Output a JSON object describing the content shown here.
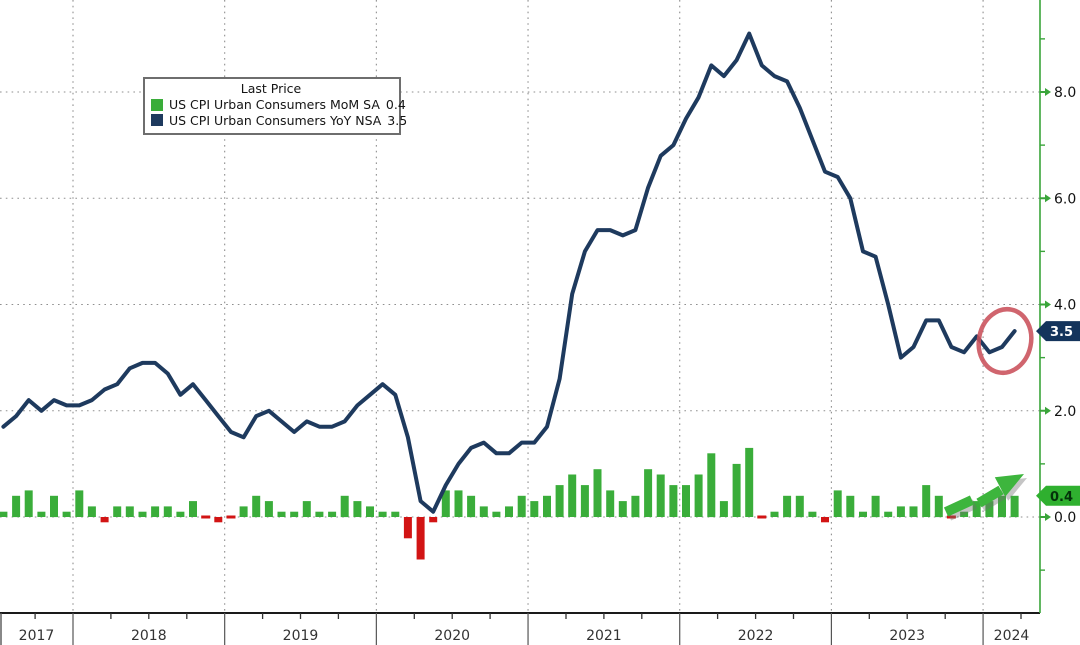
{
  "chart_data": {
    "type": "combo",
    "legend": {
      "title": "Last Price",
      "position": "top-left"
    },
    "x_axis": {
      "start_month": "2017-07",
      "end_month": "2024-03",
      "years": [
        "2017",
        "2018",
        "2019",
        "2020",
        "2021",
        "2022",
        "2023",
        "2024"
      ]
    },
    "y_axis": {
      "side": "right",
      "labels": [
        "0.0",
        "2.0",
        "4.0",
        "6.0",
        "8.0"
      ],
      "values": [
        0,
        2,
        4,
        6,
        8
      ],
      "minor_ticks": [
        -1,
        1,
        3,
        5,
        7,
        9
      ],
      "range": [
        -1.9,
        9.7
      ],
      "grid": "dotted"
    },
    "series": [
      {
        "name": "US CPI Urban Consumers MoM SA",
        "type": "bar",
        "last": "0.4",
        "color": "#3aad3a",
        "negative_color": "#d21414",
        "values": [
          0.1,
          0.4,
          0.5,
          0.1,
          0.4,
          0.1,
          0.5,
          0.2,
          -0.1,
          0.2,
          0.2,
          0.1,
          0.2,
          0.2,
          0.1,
          0.3,
          0.0,
          -0.1,
          0.0,
          0.2,
          0.4,
          0.3,
          0.1,
          0.1,
          0.3,
          0.1,
          0.1,
          0.4,
          0.3,
          0.2,
          0.1,
          0.1,
          -0.4,
          -0.8,
          -0.1,
          0.5,
          0.5,
          0.4,
          0.2,
          0.1,
          0.2,
          0.4,
          0.3,
          0.4,
          0.6,
          0.8,
          0.6,
          0.9,
          0.5,
          0.3,
          0.4,
          0.9,
          0.8,
          0.6,
          0.6,
          0.8,
          1.2,
          0.3,
          1.0,
          1.3,
          0.0,
          0.1,
          0.4,
          0.4,
          0.1,
          -0.1,
          0.5,
          0.4,
          0.1,
          0.4,
          0.1,
          0.2,
          0.2,
          0.6,
          0.4,
          0.0,
          0.1,
          0.3,
          0.3,
          0.4,
          0.4
        ]
      },
      {
        "name": "US CPI Urban Consumers YoY NSA",
        "type": "line",
        "last": "3.5",
        "color": "#1e3a5e",
        "values": [
          1.7,
          1.9,
          2.2,
          2.0,
          2.2,
          2.1,
          2.1,
          2.2,
          2.4,
          2.5,
          2.8,
          2.9,
          2.9,
          2.7,
          2.3,
          2.5,
          2.2,
          1.9,
          1.6,
          1.5,
          1.9,
          2.0,
          1.8,
          1.6,
          1.8,
          1.7,
          1.7,
          1.8,
          2.1,
          2.3,
          2.5,
          2.3,
          1.5,
          0.3,
          0.1,
          0.6,
          1.0,
          1.3,
          1.4,
          1.2,
          1.2,
          1.4,
          1.4,
          1.7,
          2.6,
          4.2,
          5.0,
          5.4,
          5.4,
          5.3,
          5.4,
          6.2,
          6.8,
          7.0,
          7.5,
          7.9,
          8.5,
          8.3,
          8.6,
          9.1,
          8.5,
          8.3,
          8.2,
          7.7,
          7.1,
          6.5,
          6.4,
          6.0,
          5.0,
          4.9,
          4.0,
          3.0,
          3.2,
          3.7,
          3.7,
          3.2,
          3.1,
          3.4,
          3.1,
          3.2,
          3.5
        ]
      }
    ],
    "last_price_markers": [
      {
        "label": "3.5",
        "value": 3.5,
        "bg": "#14345c",
        "fg": "#ffffff"
      },
      {
        "label": "0.4",
        "value": 0.4,
        "bg": "#2fb02f",
        "fg": "#04320a"
      }
    ],
    "annotations": [
      {
        "kind": "circle",
        "note": "highlight of latest YoY uptick",
        "color": "#c9505a"
      },
      {
        "kind": "arrow",
        "note": "rising MoM bars trend arrow",
        "color": "#3db53d"
      }
    ],
    "colors": {
      "grid": "#8f8f8f",
      "axis_green": "#3aa53a",
      "axis_text": "#111111",
      "bottom_axis": "#1a1a1a",
      "year_text": "#333333"
    }
  }
}
